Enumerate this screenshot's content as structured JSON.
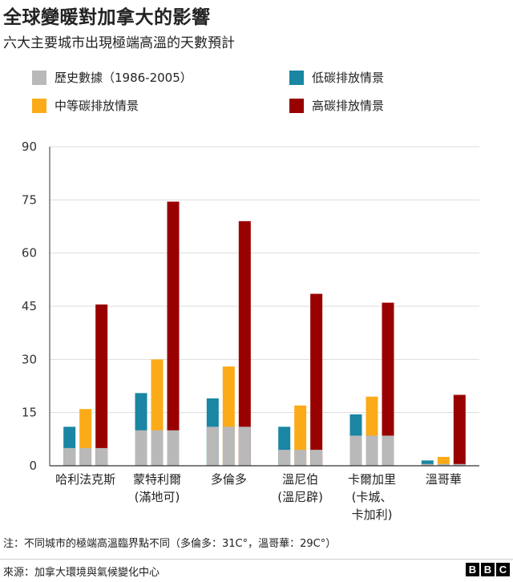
{
  "header": {
    "title": "全球變暖對加拿大的影響",
    "subtitle": "六大主要城市出現極端高溫的天數預計"
  },
  "colors": {
    "historical": "#b9b9b9",
    "low": "#1a86a3",
    "medium": "#fbab18",
    "high": "#990000",
    "grid": "#dddddd",
    "axis": "#333333"
  },
  "legend": [
    {
      "key": "historical",
      "label": "歷史數據（1986-2005）"
    },
    {
      "key": "low",
      "label": "低碳排放情景"
    },
    {
      "key": "medium",
      "label": "中等碳排放情景"
    },
    {
      "key": "high",
      "label": "高碳排放情景"
    }
  ],
  "chart_data": {
    "type": "bar",
    "title": "六大主要城市出現極端高溫的天數預計",
    "xlabel": "",
    "ylabel": "",
    "ylim": [
      0,
      90
    ],
    "yticks": [
      0,
      15,
      30,
      45,
      60,
      75,
      90
    ],
    "categories": [
      [
        "哈利法克斯"
      ],
      [
        "蒙特利爾",
        "(滿地可)"
      ],
      [
        "多倫多"
      ],
      [
        "溫尼伯",
        "(溫尼辟)"
      ],
      [
        "卡爾加里",
        "(卡城、",
        "卡加利)"
      ],
      [
        "溫哥華"
      ]
    ],
    "historical": [
      5,
      10,
      11,
      4.5,
      8.5,
      0.5
    ],
    "series": [
      {
        "name": "低碳排放情景",
        "key": "low",
        "values": [
          11,
          20.5,
          19,
          11,
          14.5,
          1.5
        ]
      },
      {
        "name": "中等碳排放情景",
        "key": "medium",
        "values": [
          16,
          30,
          28,
          17,
          19.5,
          2.5
        ]
      },
      {
        "name": "高碳排放情景",
        "key": "high",
        "values": [
          45.5,
          74.5,
          69,
          48.5,
          46,
          20
        ]
      }
    ]
  },
  "footer": {
    "note": "注：不同城市的極端高溫臨界點不同（多倫多：31C°，溫哥華：29C°）",
    "source": "來源：加拿大環境與氣候變化中心",
    "logo_letters": [
      "B",
      "B",
      "C"
    ]
  }
}
